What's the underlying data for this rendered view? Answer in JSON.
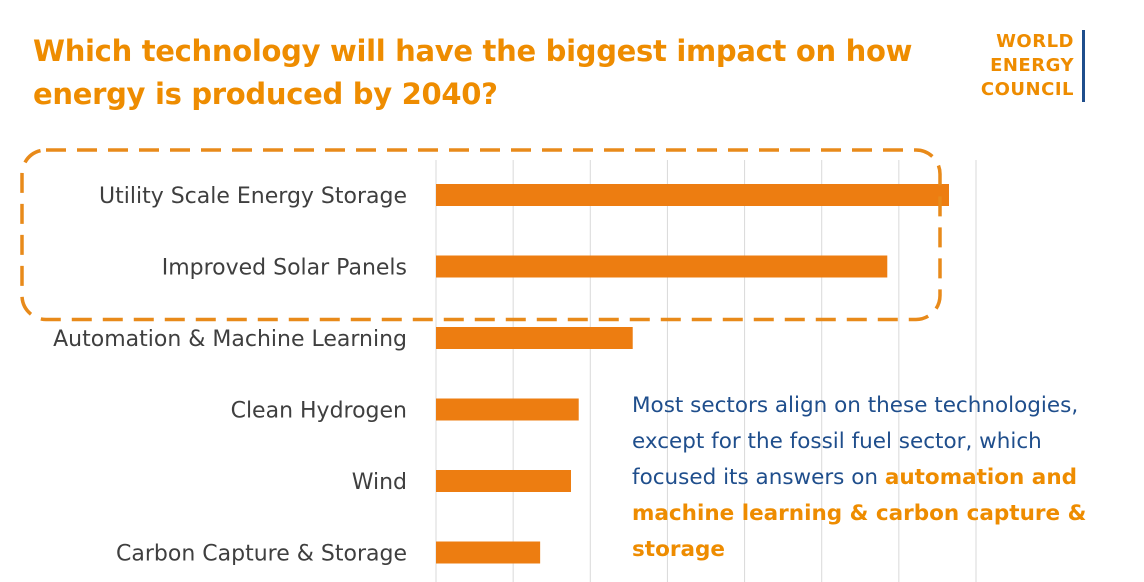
{
  "header": {
    "title": "Which technology will have the biggest impact on how energy is produced by 2040?"
  },
  "logo": {
    "lines": [
      "WORLD",
      "ENERGY",
      "COUNCIL"
    ]
  },
  "annotation": {
    "text_plain": "Most sectors align on these technologies, except for the fossil fuel sector, which focused its answers on ",
    "text_highlight": "automation and machine learning & carbon capture & storage"
  },
  "colors": {
    "bar": "#ED7D11",
    "title": "#EE8C00",
    "annotation": "#1F4E8C",
    "highlight_box": "#E88A1A",
    "gridline": "#D9D9D9"
  },
  "chart_data": {
    "type": "bar",
    "orientation": "horizontal",
    "categories": [
      "Utility Scale Energy Storage",
      "Improved Solar Panels",
      "Automation & Machine Learning",
      "Clean Hydrogen",
      "Wind",
      "Carbon Capture & Storage"
    ],
    "values": [
      66.5,
      58.5,
      25.5,
      18.5,
      17.5,
      13.5
    ],
    "xlim": [
      0,
      70
    ],
    "grid": true,
    "value_axis_labels": false,
    "highlighted_categories": [
      "Utility Scale Energy Storage",
      "Improved Solar Panels"
    ]
  }
}
